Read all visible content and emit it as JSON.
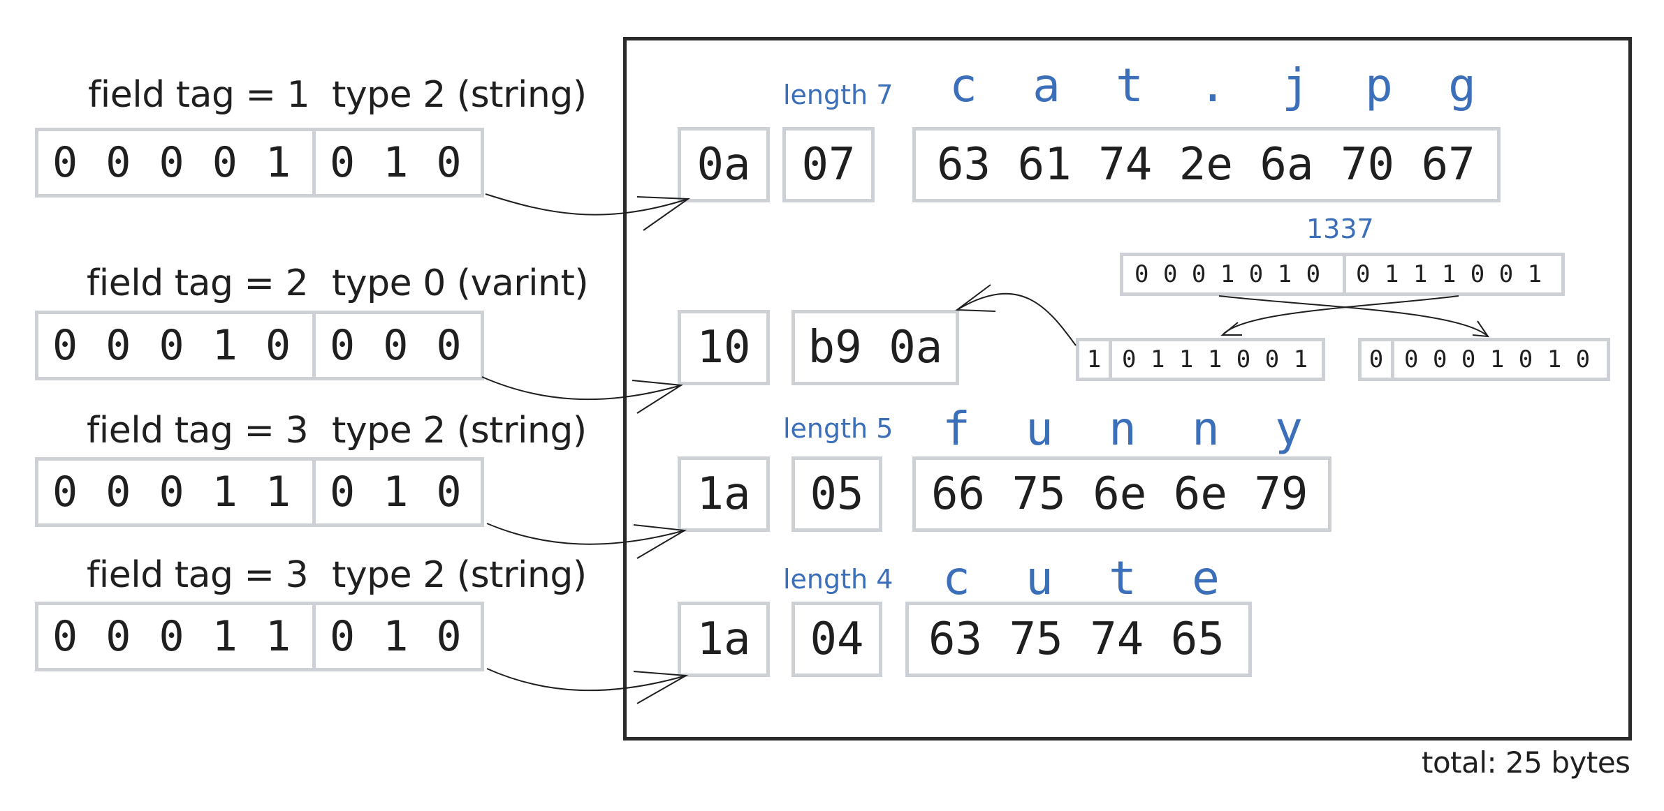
{
  "fields": [
    {
      "tag_label": "field tag = 1",
      "type_label": "type 2 (string)",
      "tag_bits": "0 0 0 0 1",
      "type_bits": "0 1 0"
    },
    {
      "tag_label": "field tag = 2",
      "type_label": "type 0 (varint)",
      "tag_bits": "0 0 0 1 0",
      "type_bits": "0 0 0"
    },
    {
      "tag_label": "field tag = 3",
      "type_label": "type 2 (string)",
      "tag_bits": "0 0 0 1 1",
      "type_bits": "0 1 0"
    },
    {
      "tag_label": "field tag = 3",
      "type_label": "type 2 (string)",
      "tag_bits": "0 0 0 1 1",
      "type_bits": "0 1 0"
    }
  ],
  "rows": [
    {
      "tag_hex": "0a",
      "length_label": "length 7",
      "length_hex": "07",
      "chars": [
        "c",
        "a",
        "t",
        ".",
        "j",
        "p",
        "g"
      ],
      "data_hex": "63 61 74 2e 6a 70 67"
    },
    {
      "tag_hex": "10",
      "value_hex": "b9 0a"
    },
    {
      "tag_hex": "1a",
      "length_label": "length 5",
      "length_hex": "05",
      "chars": [
        "f",
        "u",
        "n",
        "n",
        "y"
      ],
      "data_hex": "66 75 6e 6e 79"
    },
    {
      "tag_hex": "1a",
      "length_label": "length 4",
      "length_hex": "04",
      "chars": [
        "c",
        "u",
        "t",
        "e"
      ],
      "data_hex": "63 75 74 65"
    }
  ],
  "varint": {
    "value_label": "1337",
    "bits_high": "0 0 0 1 0 1 0",
    "bits_low": "0 1 1 1 0 0 1",
    "byte1_cont": "1",
    "byte1_bits": "0 1 1 1 0 0 1",
    "byte2_cont": "0",
    "byte2_bits": "0 0 0 1 0 1 0"
  },
  "total_label": "total: 25 bytes"
}
